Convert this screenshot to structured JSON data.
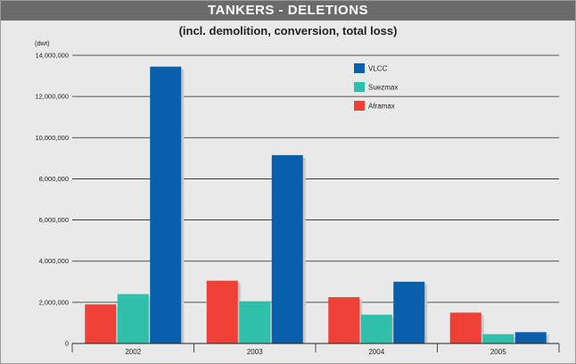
{
  "title": "TANKERS - DELETIONS",
  "subtitle": "(incl. demolition, conversion, total loss)",
  "colors": {
    "title_bar": "#6b6b6b",
    "background": "#e9e9e9",
    "VLCC": "#0860ad",
    "Suezmax": "#2fbfaa",
    "Aframax": "#ee4037"
  },
  "chart_data": {
    "type": "bar",
    "title": "TANKERS - DELETIONS",
    "subtitle": "(incl. demolition, conversion, total loss)",
    "ylabel": "(dwt)",
    "xlabel": "",
    "categories": [
      "2002",
      "2003",
      "2004",
      "2005"
    ],
    "series": [
      {
        "name": "Aframax",
        "values": [
          1900000,
          3050000,
          2250000,
          1500000
        ]
      },
      {
        "name": "Suezmax",
        "values": [
          2400000,
          2050000,
          1400000,
          450000
        ]
      },
      {
        "name": "VLCC",
        "values": [
          13450000,
          9150000,
          3000000,
          550000
        ]
      }
    ],
    "ylim": [
      0,
      14000000
    ],
    "yticks": [
      0,
      2000000,
      4000000,
      6000000,
      8000000,
      10000000,
      12000000,
      14000000
    ],
    "ytick_labels": [
      "0",
      "2,000,000",
      "4,000,000",
      "6,000,000",
      "8,000,000",
      "10,000,000",
      "12,000,000",
      "14,000,000"
    ],
    "legend_order": [
      "VLCC",
      "Suezmax",
      "Aframax"
    ],
    "legend_position": "top-right",
    "grid": true
  }
}
